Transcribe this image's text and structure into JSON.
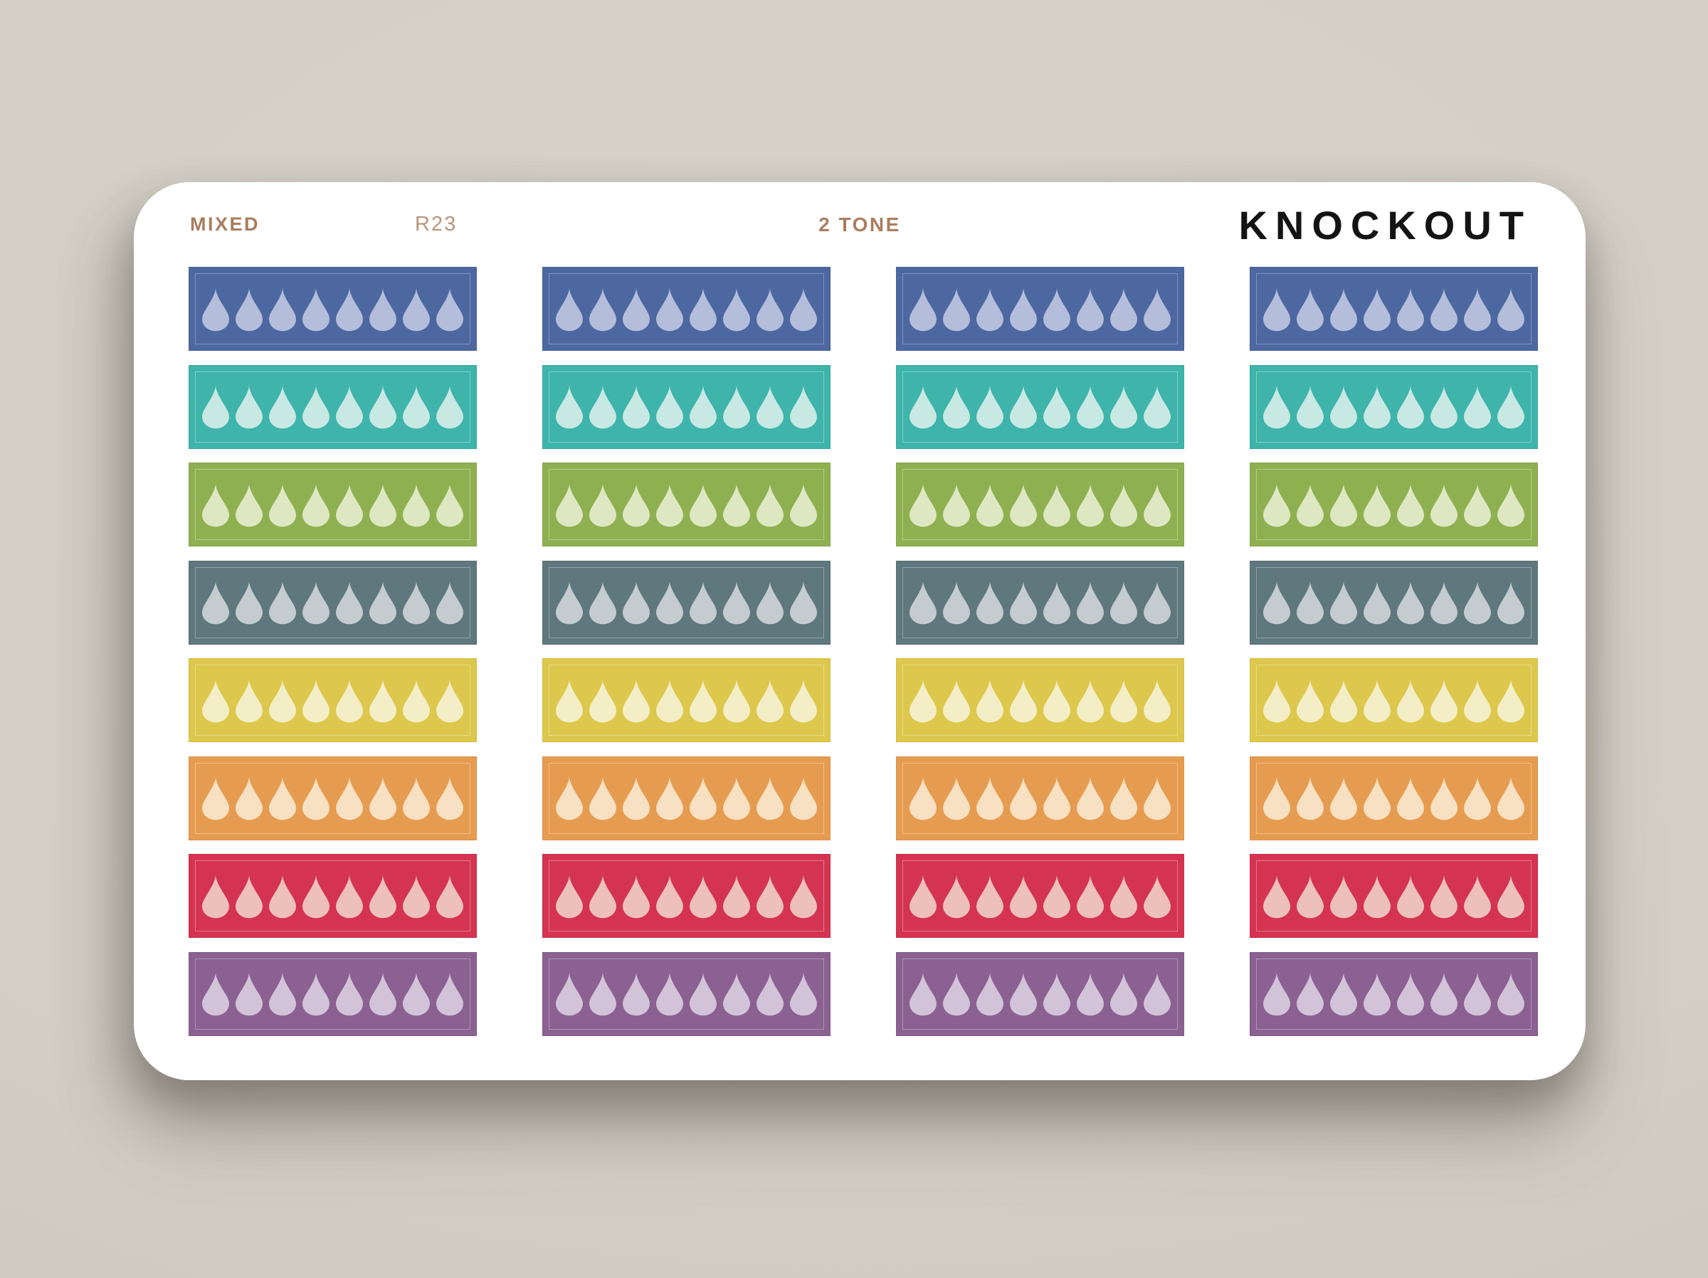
{
  "page": {
    "background_color": "#d3cfc7"
  },
  "sheet": {
    "background_color": "#ffffff",
    "header": {
      "collection_label": "MIXED",
      "collection_color": "#a87d5e",
      "sheet_code": "R23",
      "sheet_code_color": "#b8957a",
      "style_label": "2 TONE",
      "style_color": "#ab7e5d",
      "brand": "KNOCKOUT",
      "brand_color": "#141414"
    },
    "grid": {
      "columns": 4,
      "rows_count": 8,
      "drops_per_sticker": 8,
      "drop_icon": "water-drop-icon",
      "rows": [
        {
          "name": "blue",
          "background": "#4d68a0",
          "drop_tint": "#b4bedb"
        },
        {
          "name": "teal",
          "background": "#3eb4ab",
          "drop_tint": "#c8e8e4"
        },
        {
          "name": "green",
          "background": "#8fb050",
          "drop_tint": "#dde8c3"
        },
        {
          "name": "slate",
          "background": "#5e787d",
          "drop_tint": "#c4ccd0"
        },
        {
          "name": "yellow",
          "background": "#ddc84d",
          "drop_tint": "#f4eec7"
        },
        {
          "name": "orange",
          "background": "#e69c50",
          "drop_tint": "#f8e0c2"
        },
        {
          "name": "red",
          "background": "#d43451",
          "drop_tint": "#eec0bb"
        },
        {
          "name": "purple",
          "background": "#8a6191",
          "drop_tint": "#d3c3d9"
        }
      ]
    }
  }
}
